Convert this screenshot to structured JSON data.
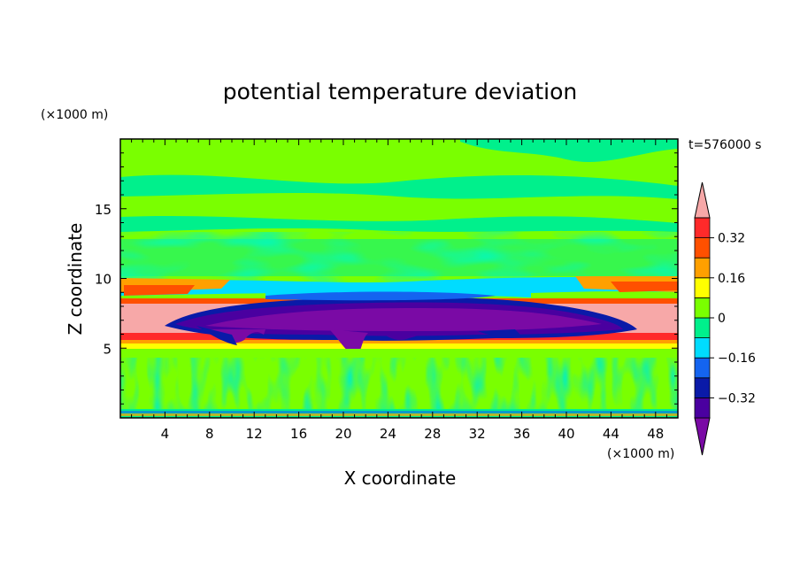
{
  "chart_data": {
    "type": "heatmap",
    "title": "potential temperature deviation",
    "xlabel": "X coordinate",
    "ylabel": "Z coordinate",
    "x_unit": "(×1000 m)",
    "y_unit": "(×1000 m)",
    "time_label": "t=576000 s",
    "xlim": [
      0,
      50
    ],
    "ylim": [
      0,
      20
    ],
    "xticks": [
      "4",
      "8",
      "12",
      "16",
      "20",
      "24",
      "28",
      "32",
      "36",
      "40",
      "44",
      "48"
    ],
    "yticks": [
      "5",
      "10",
      "15"
    ],
    "colorbar": {
      "levels": [
        -0.4,
        -0.32,
        -0.24,
        -0.16,
        -0.08,
        0,
        0.08,
        0.16,
        0.24,
        0.32,
        0.4
      ],
      "labels": [
        "0.32",
        "0.16",
        "0",
        "−0.16",
        "−0.32"
      ],
      "colors": [
        "#7a0aa5",
        "#4a00a0",
        "#0a1aa8",
        "#1464f0",
        "#00dcff",
        "#00f08c",
        "#7aff00",
        "#ffff00",
        "#ffa000",
        "#ff5000",
        "#ff2a2a",
        "#f7a8a8"
      ]
    },
    "bands": [
      {
        "z_range": [
          0.0,
          0.3
        ],
        "theta": "mixed -0.3 to 0.3"
      },
      {
        "z_range": [
          0.3,
          4.5
        ],
        "theta": "mixed -0.08 to 0.08"
      },
      {
        "z_range": [
          4.5,
          5.5
        ],
        "theta": 0.05
      },
      {
        "z_range": [
          5.5,
          6.3
        ],
        "theta": "0.24 to 0.32"
      },
      {
        "z_range": [
          6.3,
          8.0
        ],
        "theta": "0.40 (edges), -0.40 (center, x 6-44)"
      },
      {
        "z_range": [
          8.0,
          9.5
        ],
        "theta": "-0.10 (center), 0.2 to 0.3 (edges)"
      },
      {
        "z_range": [
          9.5,
          20.0
        ],
        "theta": "-0.08 to 0.08 layered"
      }
    ]
  }
}
